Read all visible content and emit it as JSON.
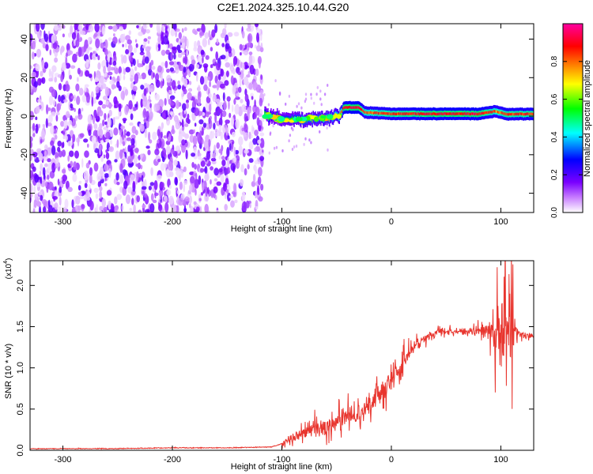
{
  "figure_title": "C2E1.2024.325.10.44.G20",
  "chart_data": [
    {
      "type": "heatmap",
      "title": "C2E1.2024.325.10.44.G20",
      "xlabel": "Height of straight line (km)",
      "ylabel": "Frequency (Hz)",
      "xlim": [
        -330,
        130
      ],
      "ylim": [
        -50,
        48
      ],
      "x_ticks": [
        -300,
        -200,
        -100,
        0,
        100
      ],
      "y_ticks": [
        -40,
        -20,
        0,
        20,
        40
      ],
      "grid": false,
      "colormap": "rainbow (white→violet→blue→cyan→green→yellow→orange→red→magenta)",
      "noise_region": {
        "x_range": [
          -330,
          -118
        ],
        "freq_range": [
          -50,
          48
        ],
        "typical_amplitude": [
          0.02,
          0.2
        ]
      },
      "signal_track": [
        {
          "x": -116,
          "freq": 0.5,
          "amplitude": 0.5
        },
        {
          "x": -100,
          "freq": -1.5,
          "amplitude": 0.55
        },
        {
          "x": -80,
          "freq": -2.0,
          "amplitude": 0.6
        },
        {
          "x": -60,
          "freq": -1.0,
          "amplitude": 0.65
        },
        {
          "x": -48,
          "freq": 0.5,
          "amplitude": 0.7
        },
        {
          "x": -44,
          "freq": 4.5,
          "amplitude": 0.9
        },
        {
          "x": -30,
          "freq": 4.5,
          "amplitude": 0.92
        },
        {
          "x": -25,
          "freq": 2.0,
          "amplitude": 0.8
        },
        {
          "x": 0,
          "freq": 1.2,
          "amplitude": 0.85
        },
        {
          "x": 40,
          "freq": 1.2,
          "amplitude": 0.9
        },
        {
          "x": 80,
          "freq": 1.2,
          "amplitude": 0.9
        },
        {
          "x": 95,
          "freq": 2.5,
          "amplitude": 0.8
        },
        {
          "x": 105,
          "freq": 1.0,
          "amplitude": 0.85
        },
        {
          "x": 130,
          "freq": 1.2,
          "amplitude": 0.85
        }
      ]
    },
    {
      "type": "colorbar",
      "label": "Normalized spectral amplitude",
      "range": [
        0,
        1
      ],
      "ticks": [
        0.0,
        0.2,
        0.4,
        0.6,
        0.8
      ],
      "tick_labels": [
        "0.0",
        "0.2",
        "0.4",
        "0.6",
        "0.8"
      ],
      "colors": [
        "#ffffff",
        "#7a00ff",
        "#0000ff",
        "#00ffff",
        "#00ff00",
        "#ffff00",
        "#ff8000",
        "#ff0000",
        "#ff00a0"
      ]
    },
    {
      "type": "line",
      "xlabel": "Height of straight line (km)",
      "ylabel": "SNR (10 * v/v)",
      "y_multiplier": "(x10",
      "y_multiplier_exp": "4",
      "xlim": [
        -330,
        130
      ],
      "ylim": [
        0,
        2.3
      ],
      "x_ticks": [
        -300,
        -200,
        -100,
        0,
        100
      ],
      "y_ticks": [
        0.0,
        0.5,
        1.0,
        1.5,
        2.0
      ],
      "y_tick_labels": [
        "0.0",
        "0.5",
        "1.0",
        "1.5",
        "2.0"
      ],
      "color": "#e8352e",
      "grid": false,
      "series": [
        {
          "x": [
            -330,
            -300,
            -250,
            -200,
            -150,
            -110,
            -100,
            -90,
            -80,
            -70,
            -60,
            -50,
            -40,
            -30,
            -20,
            -10,
            0,
            10,
            20,
            30,
            40,
            50,
            60,
            70,
            80,
            90,
            100,
            110,
            120,
            130
          ],
          "y": [
            0.02,
            0.02,
            0.02,
            0.03,
            0.03,
            0.04,
            0.08,
            0.15,
            0.22,
            0.27,
            0.3,
            0.35,
            0.4,
            0.45,
            0.55,
            0.7,
            0.85,
            1.05,
            1.25,
            1.35,
            1.42,
            1.45,
            1.44,
            1.43,
            1.45,
            1.48,
            1.5,
            1.45,
            1.4,
            1.38
          ]
        }
      ],
      "noise_amplitude": [
        {
          "x": -100,
          "amp": 0.08
        },
        {
          "x": -60,
          "amp": 0.2
        },
        {
          "x": -40,
          "amp": 0.3
        },
        {
          "x": -20,
          "amp": 0.25
        },
        {
          "x": 0,
          "amp": 0.25
        },
        {
          "x": 10,
          "amp": 0.35
        },
        {
          "x": 20,
          "amp": 0.15
        },
        {
          "x": 60,
          "amp": 0.05
        },
        {
          "x": 85,
          "amp": 0.15
        },
        {
          "x": 100,
          "amp": 0.9
        },
        {
          "x": 110,
          "amp": 0.7
        },
        {
          "x": 115,
          "amp": 0.1
        },
        {
          "x": 130,
          "amp": 0.05
        }
      ]
    }
  ]
}
